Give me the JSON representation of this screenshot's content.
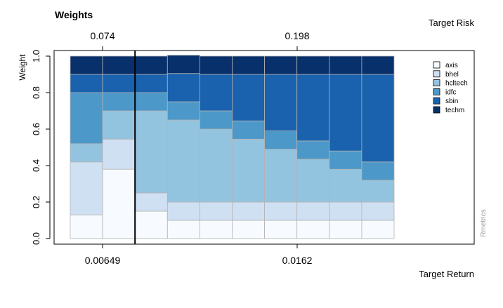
{
  "chart_data": {
    "type": "bar",
    "stacked": true,
    "title": "Weights",
    "ylabel": "Weight",
    "top_axis_title": "Target Risk",
    "bottom_axis_title": "Target Return",
    "side_text": "Rmetrics",
    "ylim": [
      0,
      1
    ],
    "y_ticks": [
      "0.0",
      "0.2",
      "0.4",
      "0.6",
      "0.8",
      "1.0"
    ],
    "top_ticks": [
      "0.074",
      "0.198"
    ],
    "bottom_ticks": [
      "0.00649",
      "0.0162"
    ],
    "bar_count": 10,
    "marker_bar_boundary": 2,
    "legend_position": "top-right",
    "series": [
      {
        "name": "axis",
        "color": "#f7fbff",
        "values": [
          0.13,
          0.38,
          0.15,
          0.1,
          0.1,
          0.1,
          0.1,
          0.1,
          0.1,
          0.1
        ]
      },
      {
        "name": "bhel",
        "color": "#d0e0f3",
        "values": [
          0.29,
          0.165,
          0.1,
          0.1,
          0.1,
          0.1,
          0.1,
          0.1,
          0.1,
          0.1
        ]
      },
      {
        "name": "hcltech",
        "color": "#93c4df",
        "values": [
          0.1,
          0.155,
          0.45,
          0.45,
          0.4,
          0.345,
          0.29,
          0.235,
          0.18,
          0.12
        ]
      },
      {
        "name": "idfc",
        "color": "#4b98c9",
        "values": [
          0.28,
          0.1,
          0.1,
          0.1,
          0.1,
          0.1,
          0.1,
          0.1,
          0.1,
          0.1
        ]
      },
      {
        "name": "sbin",
        "color": "#1a62ad",
        "values": [
          0.1,
          0.1,
          0.1,
          0.155,
          0.2,
          0.255,
          0.31,
          0.365,
          0.42,
          0.48
        ]
      },
      {
        "name": "techm",
        "color": "#08306b",
        "values": [
          0.1,
          0.1,
          0.1,
          0.1,
          0.1,
          0.1,
          0.1,
          0.1,
          0.1,
          0.1
        ]
      }
    ]
  }
}
